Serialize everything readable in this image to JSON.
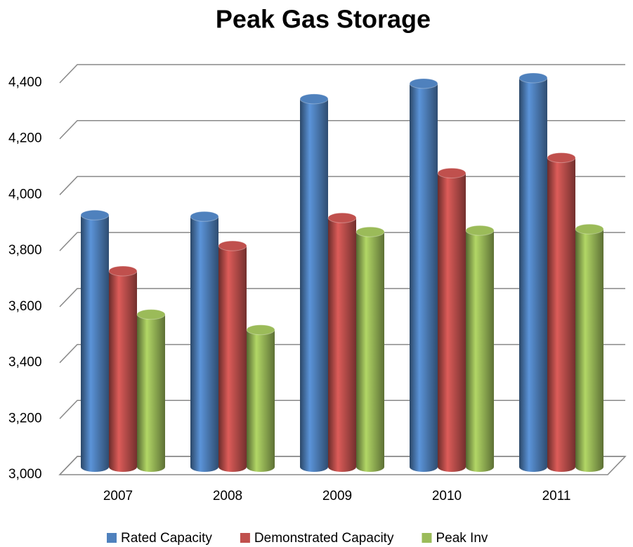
{
  "chart_data": {
    "type": "bar",
    "title": "Peak Gas Storage",
    "categories": [
      "2007",
      "2008",
      "2009",
      "2010",
      "2011"
    ],
    "series": [
      {
        "name": "Rated Capacity",
        "color": "#4f81bd",
        "values": [
          3900,
          3895,
          4315,
          4370,
          4390
        ]
      },
      {
        "name": "Demonstrated Capacity",
        "color": "#c0504d",
        "values": [
          3700,
          3790,
          3890,
          4050,
          4105
        ]
      },
      {
        "name": "Peak Inv",
        "color": "#9bbb59",
        "values": [
          3545,
          3490,
          3840,
          3845,
          3850
        ]
      }
    ],
    "ylim": [
      3000,
      4400
    ],
    "yticks": [
      {
        "value": 3000,
        "label": "3,000"
      },
      {
        "value": 3200,
        "label": "3,200"
      },
      {
        "value": 3400,
        "label": "3,400"
      },
      {
        "value": 3600,
        "label": "3,600"
      },
      {
        "value": 3800,
        "label": "3,800"
      },
      {
        "value": 4000,
        "label": "4,000"
      },
      {
        "value": 4200,
        "label": "4,200"
      },
      {
        "value": 4400,
        "label": "4,400"
      }
    ],
    "grid": true,
    "legend": "bottom"
  }
}
